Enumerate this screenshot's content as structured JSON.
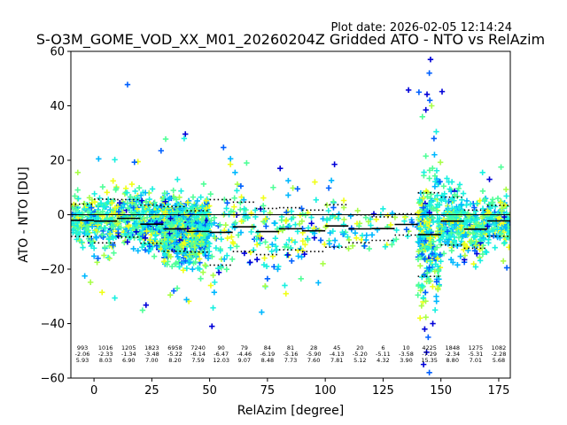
{
  "plot_date": "Plot date: 2026-02-05 12:14:24",
  "chart_data": {
    "type": "scatter",
    "title": "S-O3M_GOME_VOD_XX_M01_20260204Z Gridded ATO - NTO vs RelAzim",
    "xlabel": "RelAzim [degree]",
    "ylabel": "ATO - NTO [DU]",
    "xlim": [
      -10,
      180
    ],
    "ylim": [
      -60,
      60
    ],
    "xticks": [
      0,
      25,
      50,
      75,
      100,
      125,
      150,
      175
    ],
    "yticks": [
      -60,
      -40,
      -20,
      0,
      20,
      40,
      60
    ],
    "grid": false,
    "colors": {
      "palette": [
        "#0000d8",
        "#0060ff",
        "#00b8ff",
        "#18f0e0",
        "#50ff98",
        "#a8ff48",
        "#f0ff18"
      ],
      "mean_line": "#000000",
      "std_line": "#000000"
    },
    "bins": [
      {
        "x": [
          -10,
          0
        ],
        "n": "993",
        "mean": "-2.06",
        "std": "5.93"
      },
      {
        "x": [
          0,
          10
        ],
        "n": "1016",
        "mean": "-2.33",
        "std": "8.03"
      },
      {
        "x": [
          10,
          20
        ],
        "n": "1205",
        "mean": "-1.34",
        "std": "6.90"
      },
      {
        "x": [
          20,
          30
        ],
        "n": "1823",
        "mean": "-3.48",
        "std": "7.00"
      },
      {
        "x": [
          30,
          40
        ],
        "n": "6958",
        "mean": "-5.22",
        "std": "8.20"
      },
      {
        "x": [
          40,
          50
        ],
        "n": "7240",
        "mean": "-6.14",
        "std": "7.59"
      },
      {
        "x": [
          50,
          60
        ],
        "n": "90",
        "mean": "-6.47",
        "std": "12.03"
      },
      {
        "x": [
          60,
          70
        ],
        "n": "79",
        "mean": "-4.46",
        "std": "9.07"
      },
      {
        "x": [
          70,
          80
        ],
        "n": "84",
        "mean": "-6.19",
        "std": "8.48"
      },
      {
        "x": [
          80,
          90
        ],
        "n": "81",
        "mean": "-5.16",
        "std": "7.73"
      },
      {
        "x": [
          90,
          100
        ],
        "n": "28",
        "mean": "-5.90",
        "std": "7.60"
      },
      {
        "x": [
          100,
          110
        ],
        "n": "45",
        "mean": "-4.13",
        "std": "7.81"
      },
      {
        "x": [
          110,
          120
        ],
        "n": "20",
        "mean": "-5.20",
        "std": "5.12"
      },
      {
        "x": [
          120,
          130
        ],
        "n": "6",
        "mean": "-5.11",
        "std": "4.32"
      },
      {
        "x": [
          130,
          140
        ],
        "n": "10",
        "mean": "-3.58",
        "std": "3.90"
      },
      {
        "x": [
          140,
          150
        ],
        "n": "4225",
        "mean": "-7.29",
        "std": "15.35"
      },
      {
        "x": [
          150,
          160
        ],
        "n": "1848",
        "mean": "-2.34",
        "std": "8.80"
      },
      {
        "x": [
          160,
          170
        ],
        "n": "1275",
        "mean": "-5.31",
        "std": "7.01"
      },
      {
        "x": [
          170,
          180
        ],
        "n": "1082",
        "mean": "-2.28",
        "std": "5.68"
      }
    ],
    "outliers": [
      [
        14.5,
        47.8
      ],
      [
        9,
        20.2
      ],
      [
        19,
        19.5
      ],
      [
        2,
        20.5
      ],
      [
        -7,
        15.5
      ],
      [
        17.5,
        19.3
      ],
      [
        21,
        -35.1
      ],
      [
        22.5,
        -33.2
      ],
      [
        9,
        -30.6
      ],
      [
        3.5,
        -28.5
      ],
      [
        -4,
        -22.5
      ],
      [
        -1.5,
        -24.8
      ],
      [
        29,
        23.5
      ],
      [
        31,
        27.8
      ],
      [
        39.5,
        29.6
      ],
      [
        39,
        28.0
      ],
      [
        41,
        -31.8
      ],
      [
        40,
        -31.2
      ],
      [
        33,
        -29.5
      ],
      [
        34.5,
        -28.0
      ],
      [
        36,
        -27.0
      ],
      [
        51,
        -41.0
      ],
      [
        51.5,
        -34.2
      ],
      [
        50.5,
        -26.0
      ],
      [
        52,
        -28.5
      ],
      [
        48,
        -18.5
      ],
      [
        56,
        24.7
      ],
      [
        55,
        -19.5
      ],
      [
        54,
        -21.2
      ],
      [
        57.5,
        -15.0
      ],
      [
        59,
        18.5
      ],
      [
        61,
        15.5
      ],
      [
        62,
        11.2
      ],
      [
        63.5,
        10.5
      ],
      [
        66,
        19.0
      ],
      [
        67.5,
        -17.5
      ],
      [
        69,
        -13.0
      ],
      [
        70.5,
        -11.0
      ],
      [
        72.5,
        -35.8
      ],
      [
        74,
        -26.2
      ],
      [
        75,
        -23.5
      ],
      [
        77.5,
        10.0
      ],
      [
        80.5,
        17.0
      ],
      [
        82.5,
        -26.0
      ],
      [
        83,
        -29.0
      ],
      [
        84,
        12.5
      ],
      [
        86,
        9.8
      ],
      [
        88,
        9.5
      ],
      [
        89.5,
        -23.5
      ],
      [
        91,
        -14.5
      ],
      [
        94,
        -1.0
      ],
      [
        95.5,
        12.0
      ],
      [
        97,
        -25.0
      ],
      [
        99,
        -18.0
      ],
      [
        101.5,
        9.8
      ],
      [
        103.5,
        4.8
      ],
      [
        104,
        18.5
      ],
      [
        106,
        -11.5
      ],
      [
        108,
        5.2
      ],
      [
        111,
        -0.5
      ],
      [
        114,
        1.5
      ],
      [
        117,
        -11.5
      ],
      [
        119,
        -12.5
      ],
      [
        121,
        0.3
      ],
      [
        124,
        0.0
      ],
      [
        127,
        -0.3
      ],
      [
        129,
        0.5
      ],
      [
        136,
        45.8
      ],
      [
        140.5,
        45.0
      ],
      [
        142,
        36.0
      ],
      [
        143.5,
        38.5
      ],
      [
        144,
        44.2
      ],
      [
        145,
        52.0
      ],
      [
        145.5,
        57.0
      ],
      [
        146,
        40.0
      ],
      [
        147,
        28.0
      ],
      [
        145.2,
        42.0
      ],
      [
        150.5,
        45.2
      ],
      [
        148,
        30.5
      ],
      [
        143,
        -42.0
      ],
      [
        144.5,
        -45.0
      ],
      [
        143.8,
        -50.5
      ],
      [
        145,
        -58.0
      ],
      [
        142.5,
        -55.0
      ],
      [
        146.5,
        -40.0
      ],
      [
        147.5,
        -35.0
      ],
      [
        141,
        -38.0
      ],
      [
        148,
        -30.0
      ],
      [
        177,
        -17.0
      ],
      [
        178.5,
        -19.5
      ],
      [
        176,
        17.5
      ],
      [
        171,
        13.0
      ],
      [
        168,
        15.5
      ]
    ]
  }
}
